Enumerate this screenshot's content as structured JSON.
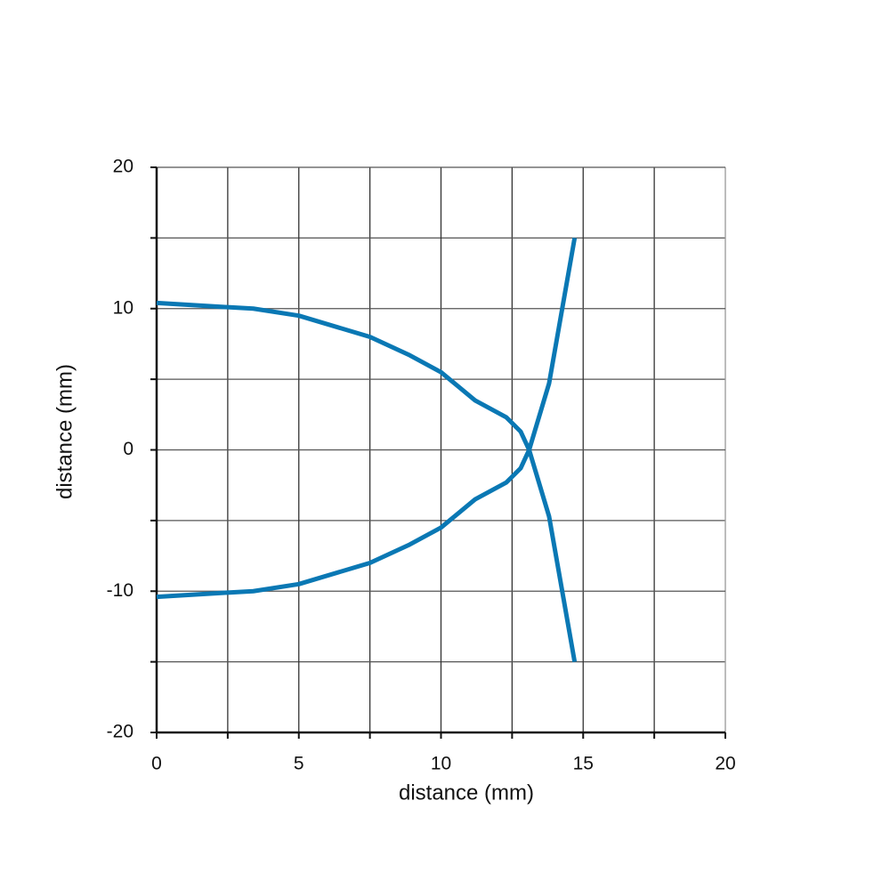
{
  "chart_data": {
    "type": "line",
    "xlabel": "distance (mm)",
    "ylabel": "distance (mm)",
    "x": [
      0,
      2.5,
      3.4,
      5,
      7.5,
      8.9,
      10,
      11.2,
      12.3,
      12.8,
      13.1,
      13.8,
      14.7
    ],
    "series": [
      {
        "color": "#0a78b4",
        "values": [
          10.4,
          10.1,
          10,
          9.5,
          8,
          6.7,
          5.5,
          3.5,
          2.3,
          1.3,
          0,
          -4.7,
          -15
        ]
      },
      {
        "color": "#0a78b4",
        "values": [
          -10.4,
          -10.1,
          -10,
          -9.5,
          -8,
          -6.7,
          -5.5,
          -3.5,
          -2.3,
          -1.3,
          0,
          4.7,
          15
        ]
      }
    ],
    "xlim": [
      0,
      20
    ],
    "ylim": [
      -20,
      20
    ],
    "xticks": [
      0,
      5,
      10,
      15,
      20
    ],
    "yticks": [
      -20,
      -10,
      0,
      10,
      20
    ],
    "xminor": [
      2.5,
      7.5,
      12.5,
      17.5
    ],
    "yminor": [
      -15,
      -5,
      5,
      15
    ],
    "grid": true
  }
}
